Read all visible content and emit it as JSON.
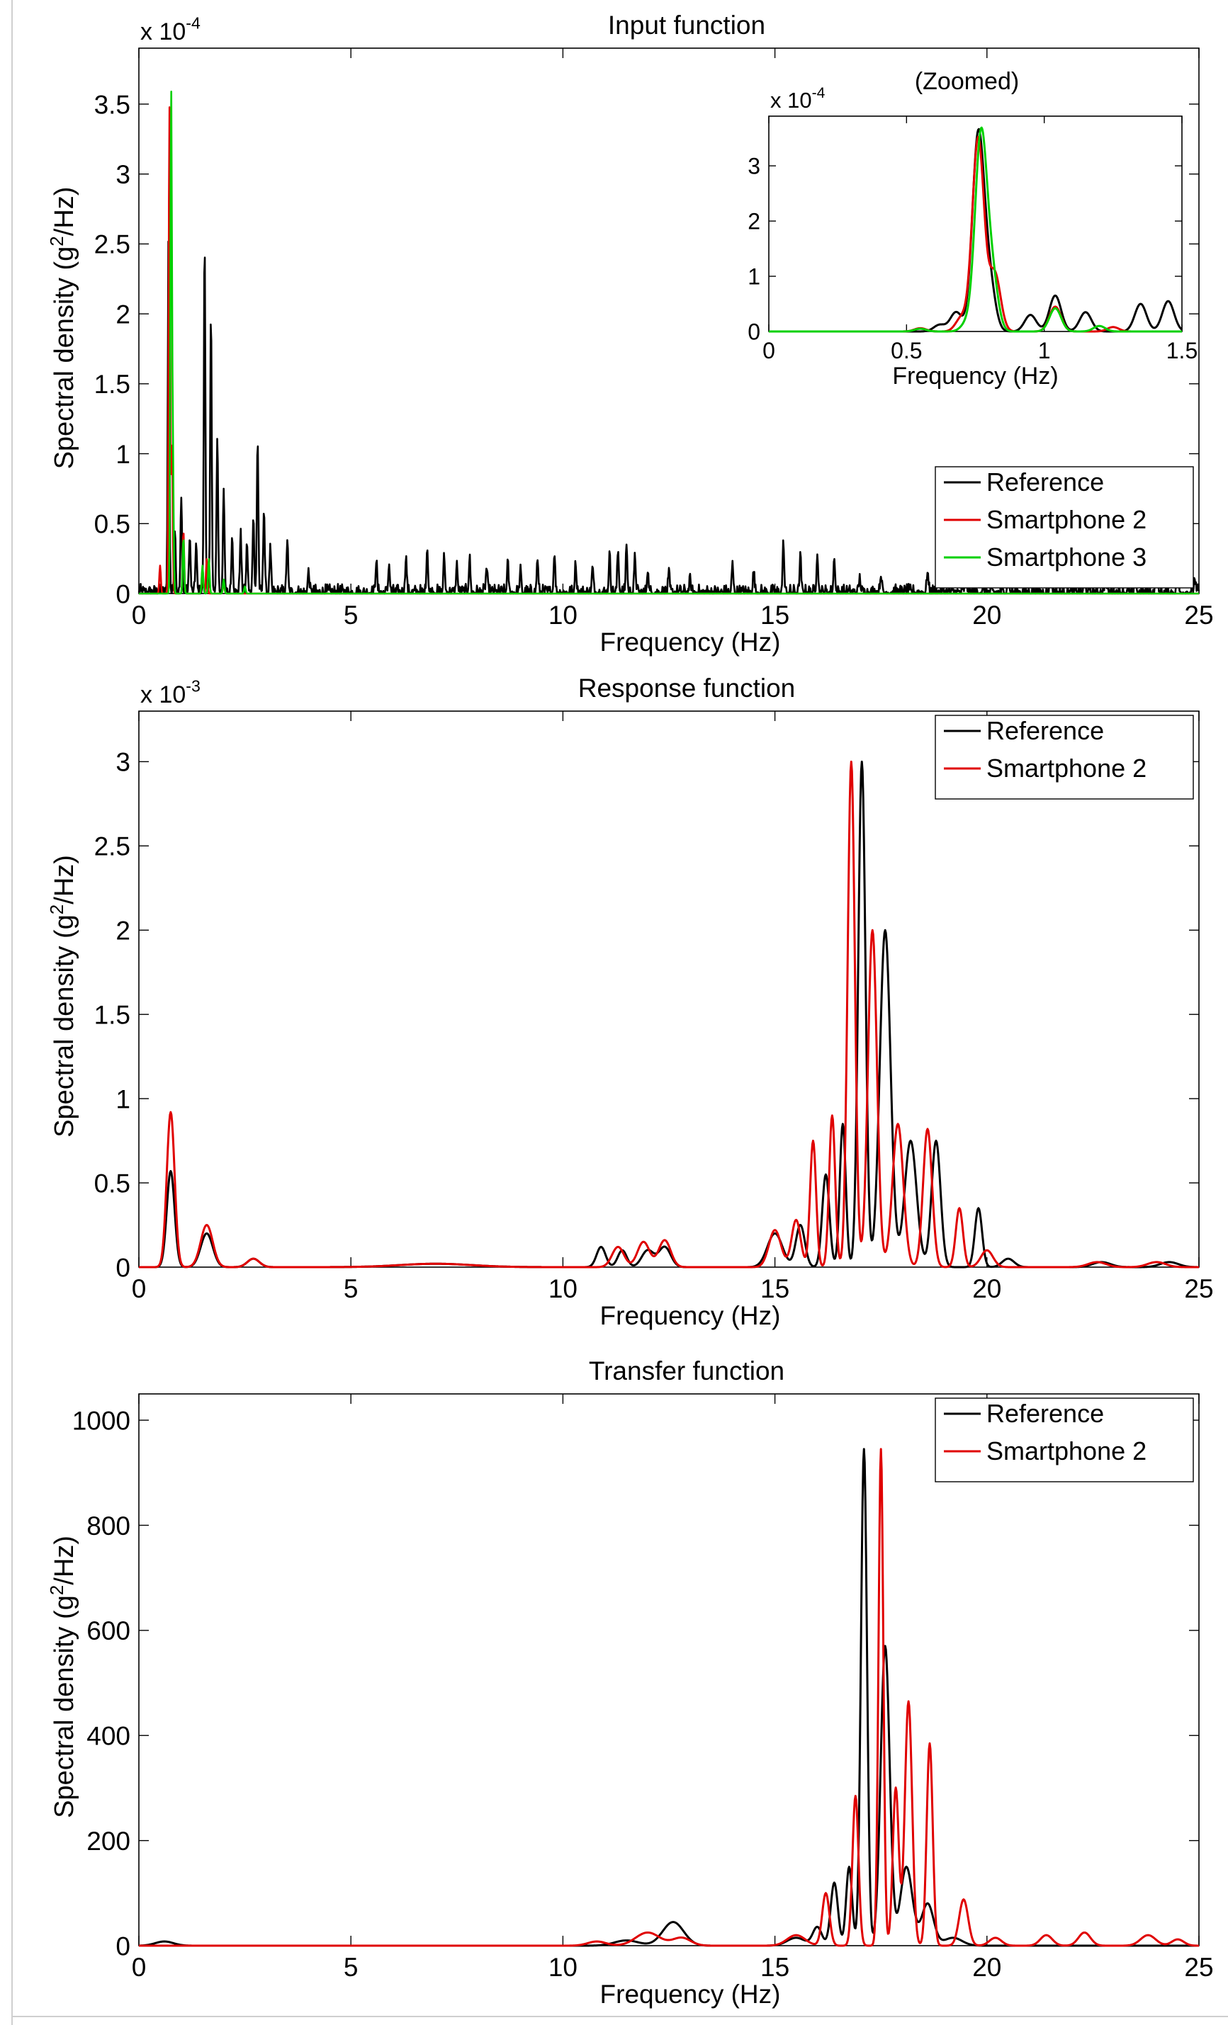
{
  "colors": {
    "reference": "#000000",
    "smartphone2": "#e00000",
    "smartphone3": "#00d000"
  },
  "chart_data": [
    {
      "id": "input",
      "type": "line",
      "title": "Input function",
      "xlabel": "Frequency (Hz)",
      "ylabel_main": "Spectral density (g",
      "ylabel_sup": "2",
      "ylabel_tail": "/Hz)",
      "exponent_base": "x 10",
      "exponent_power": "-4",
      "xlim": [
        0,
        25
      ],
      "ylim": [
        0,
        3.9
      ],
      "xticks": [
        0,
        5,
        10,
        15,
        20,
        25
      ],
      "xtick_labels": [
        "0",
        "5",
        "10",
        "15",
        "20",
        "25"
      ],
      "yticks": [
        0,
        0.5,
        1,
        1.5,
        2,
        2.5,
        3,
        3.5
      ],
      "ytick_labels": [
        "0",
        "0.5",
        "1",
        "1.5",
        "2",
        "2.5",
        "3",
        "3.5"
      ],
      "legend_position": "lower-right",
      "series": [
        {
          "name": "Reference",
          "color": "#000000",
          "peaks": [
            [
              0.7,
              2.62
            ],
            [
              0.85,
              0.45
            ],
            [
              1.0,
              0.67
            ],
            [
              1.2,
              0.4
            ],
            [
              1.35,
              0.35
            ],
            [
              1.55,
              2.52
            ],
            [
              1.7,
              2.02
            ],
            [
              1.85,
              1.12
            ],
            [
              2.0,
              0.75
            ],
            [
              2.2,
              0.4
            ],
            [
              2.4,
              0.42
            ],
            [
              2.55,
              0.35
            ],
            [
              2.7,
              0.55
            ],
            [
              2.8,
              1.1
            ],
            [
              2.95,
              0.6
            ],
            [
              3.1,
              0.3
            ],
            [
              3.5,
              0.38
            ],
            [
              4.0,
              0.15
            ],
            [
              5.6,
              0.22
            ],
            [
              5.9,
              0.2
            ],
            [
              6.3,
              0.25
            ],
            [
              6.8,
              0.32
            ],
            [
              7.2,
              0.25
            ],
            [
              7.5,
              0.2
            ],
            [
              7.8,
              0.24
            ],
            [
              8.2,
              0.18
            ],
            [
              8.7,
              0.2
            ],
            [
              9.0,
              0.15
            ],
            [
              9.4,
              0.24
            ],
            [
              9.8,
              0.28
            ],
            [
              10.3,
              0.2
            ],
            [
              10.7,
              0.18
            ],
            [
              11.1,
              0.27
            ],
            [
              11.3,
              0.3
            ],
            [
              11.5,
              0.35
            ],
            [
              11.7,
              0.25
            ],
            [
              12.0,
              0.15
            ],
            [
              12.5,
              0.12
            ],
            [
              13.0,
              0.08
            ],
            [
              14.0,
              0.2
            ],
            [
              14.5,
              0.15
            ],
            [
              15.2,
              0.35
            ],
            [
              15.6,
              0.25
            ],
            [
              16.0,
              0.28
            ],
            [
              16.4,
              0.25
            ],
            [
              17.0,
              0.1
            ],
            [
              17.5,
              0.12
            ],
            [
              18.6,
              0.15
            ],
            [
              19.5,
              0.25
            ],
            [
              20.5,
              0.15
            ],
            [
              21.5,
              0.22
            ],
            [
              22.3,
              0.15
            ],
            [
              22.8,
              0.18
            ],
            [
              23.5,
              0.15
            ],
            [
              24.0,
              0.22
            ],
            [
              24.5,
              0.18
            ],
            [
              24.9,
              0.1
            ]
          ],
          "noise_amplitude": 0.07
        },
        {
          "name": "Smartphone 2",
          "color": "#e00000",
          "peaks": [
            [
              0.5,
              0.2
            ],
            [
              0.72,
              3.5
            ],
            [
              0.78,
              1.05
            ],
            [
              1.05,
              0.45
            ],
            [
              1.5,
              0.18
            ],
            [
              1.6,
              0.25
            ],
            [
              2.0,
              0.08
            ]
          ],
          "noise_amplitude": 0.0
        },
        {
          "name": "Smartphone 3",
          "color": "#00d000",
          "peaks": [
            [
              0.76,
              3.55
            ],
            [
              0.8,
              1.0
            ],
            [
              1.05,
              0.4
            ],
            [
              1.5,
              0.2
            ],
            [
              1.65,
              0.25
            ],
            [
              2.0,
              0.1
            ],
            [
              2.5,
              0.05
            ]
          ],
          "noise_amplitude": 0.0
        }
      ],
      "inset": {
        "title": "(Zoomed)",
        "xlabel": "Frequency (Hz)",
        "exponent_base": "x 10",
        "exponent_power": "-4",
        "xlim": [
          0,
          1.5
        ],
        "ylim": [
          0,
          3.9
        ],
        "xticks": [
          0,
          0.5,
          1,
          1.5
        ],
        "xtick_labels": [
          "0",
          "0.5",
          "1",
          "1.5"
        ],
        "yticks": [
          0,
          1,
          2,
          3
        ],
        "ytick_labels": [
          "0",
          "1",
          "2",
          "3"
        ],
        "series": [
          {
            "name": "Reference",
            "color": "#000000",
            "peaks": [
              [
                0.62,
                0.12
              ],
              [
                0.68,
                0.35
              ],
              [
                0.76,
                3.5
              ],
              [
                0.8,
                0.9
              ],
              [
                0.95,
                0.3
              ],
              [
                1.04,
                0.65
              ],
              [
                1.15,
                0.35
              ],
              [
                1.35,
                0.5
              ],
              [
                1.45,
                0.55
              ]
            ]
          },
          {
            "name": "Smartphone 2",
            "color": "#e00000",
            "peaks": [
              [
                0.55,
                0.06
              ],
              [
                0.7,
                0.25
              ],
              [
                0.76,
                3.5
              ],
              [
                0.82,
                1.05
              ],
              [
                1.04,
                0.45
              ],
              [
                1.25,
                0.08
              ]
            ]
          },
          {
            "name": "Smartphone 3",
            "color": "#00d000",
            "peaks": [
              [
                0.55,
                0.05
              ],
              [
                0.72,
                0.15
              ],
              [
                0.77,
                3.5
              ],
              [
                0.81,
                1.0
              ],
              [
                1.04,
                0.42
              ],
              [
                1.2,
                0.1
              ]
            ]
          }
        ]
      }
    },
    {
      "id": "response",
      "type": "line",
      "title": "Response function",
      "xlabel": "Frequency (Hz)",
      "ylabel_main": "Spectral density (g",
      "ylabel_sup": "2",
      "ylabel_tail": "/Hz)",
      "exponent_base": "x 10",
      "exponent_power": "-3",
      "xlim": [
        0,
        25
      ],
      "ylim": [
        0,
        3.3
      ],
      "xticks": [
        0,
        5,
        10,
        15,
        20,
        25
      ],
      "xtick_labels": [
        "0",
        "5",
        "10",
        "15",
        "20",
        "25"
      ],
      "yticks": [
        0,
        0.5,
        1,
        1.5,
        2,
        2.5,
        3
      ],
      "ytick_labels": [
        "0",
        "0.5",
        "1",
        "1.5",
        "2",
        "2.5",
        "3"
      ],
      "legend_position": "top-right",
      "series": [
        {
          "name": "Reference",
          "color": "#000000",
          "peaks": [
            [
              0.75,
              0.57,
              0.13
            ],
            [
              1.6,
              0.2,
              0.2
            ],
            [
              2.7,
              0.05,
              0.2
            ],
            [
              7,
              0.02,
              1.2
            ],
            [
              10.9,
              0.12,
              0.15
            ],
            [
              11.4,
              0.1,
              0.15
            ],
            [
              12.0,
              0.1,
              0.2
            ],
            [
              12.4,
              0.12,
              0.2
            ],
            [
              15.0,
              0.2,
              0.25
            ],
            [
              15.6,
              0.25,
              0.15
            ],
            [
              16.2,
              0.55,
              0.12
            ],
            [
              16.6,
              0.85,
              0.1
            ],
            [
              17.05,
              3.0,
              0.12
            ],
            [
              17.6,
              2.0,
              0.18
            ],
            [
              18.2,
              0.75,
              0.2
            ],
            [
              18.8,
              0.75,
              0.15
            ],
            [
              19.8,
              0.35,
              0.12
            ],
            [
              20.5,
              0.05,
              0.2
            ],
            [
              22.7,
              0.03,
              0.3
            ],
            [
              24.3,
              0.03,
              0.3
            ]
          ]
        },
        {
          "name": "Smartphone 2",
          "color": "#e00000",
          "peaks": [
            [
              0.75,
              0.92,
              0.13
            ],
            [
              1.6,
              0.25,
              0.2
            ],
            [
              2.7,
              0.05,
              0.2
            ],
            [
              7,
              0.02,
              1.2
            ],
            [
              11.3,
              0.12,
              0.2
            ],
            [
              11.9,
              0.15,
              0.2
            ],
            [
              12.4,
              0.16,
              0.2
            ],
            [
              15.0,
              0.22,
              0.2
            ],
            [
              15.5,
              0.28,
              0.15
            ],
            [
              15.9,
              0.75,
              0.1
            ],
            [
              16.35,
              0.9,
              0.1
            ],
            [
              16.8,
              3.0,
              0.12
            ],
            [
              17.3,
              2.0,
              0.15
            ],
            [
              17.9,
              0.85,
              0.18
            ],
            [
              18.6,
              0.82,
              0.15
            ],
            [
              19.35,
              0.35,
              0.12
            ],
            [
              20.0,
              0.1,
              0.2
            ],
            [
              22.6,
              0.03,
              0.3
            ],
            [
              24.0,
              0.03,
              0.3
            ]
          ]
        }
      ]
    },
    {
      "id": "transfer",
      "type": "line",
      "title": "Transfer function",
      "xlabel": "Frequency (Hz)",
      "ylabel_main": "Spectral density (g",
      "ylabel_sup": "2",
      "ylabel_tail": "/Hz)",
      "xlim": [
        0,
        25
      ],
      "ylim": [
        0,
        1050
      ],
      "xticks": [
        0,
        5,
        10,
        15,
        20,
        25
      ],
      "xtick_labels": [
        "0",
        "5",
        "10",
        "15",
        "20",
        "25"
      ],
      "yticks": [
        0,
        200,
        400,
        600,
        800,
        1000
      ],
      "ytick_labels": [
        "0",
        "200",
        "400",
        "600",
        "800",
        "1000"
      ],
      "legend_position": "top-right",
      "series": [
        {
          "name": "Reference",
          "color": "#000000",
          "peaks": [
            [
              0.6,
              8,
              0.3
            ],
            [
              11.5,
              10,
              0.4
            ],
            [
              12.6,
              45,
              0.35
            ],
            [
              15.5,
              15,
              0.3
            ],
            [
              16.0,
              35,
              0.15
            ],
            [
              16.4,
              120,
              0.12
            ],
            [
              16.75,
              150,
              0.1
            ],
            [
              17.1,
              945,
              0.1
            ],
            [
              17.6,
              570,
              0.15
            ],
            [
              18.1,
              150,
              0.2
            ],
            [
              18.6,
              80,
              0.2
            ],
            [
              19.2,
              15,
              0.3
            ]
          ]
        },
        {
          "name": "Smartphone 2",
          "color": "#e00000",
          "peaks": [
            [
              10.8,
              8,
              0.3
            ],
            [
              12.0,
              25,
              0.4
            ],
            [
              12.8,
              15,
              0.3
            ],
            [
              15.5,
              20,
              0.3
            ],
            [
              16.2,
              100,
              0.12
            ],
            [
              16.9,
              285,
              0.1
            ],
            [
              17.5,
              945,
              0.08
            ],
            [
              17.85,
              300,
              0.1
            ],
            [
              18.15,
              465,
              0.12
            ],
            [
              18.65,
              385,
              0.1
            ],
            [
              19.45,
              88,
              0.15
            ],
            [
              20.2,
              15,
              0.2
            ],
            [
              21.4,
              20,
              0.2
            ],
            [
              22.3,
              25,
              0.2
            ],
            [
              23.8,
              20,
              0.25
            ],
            [
              24.5,
              12,
              0.2
            ]
          ]
        }
      ]
    }
  ]
}
